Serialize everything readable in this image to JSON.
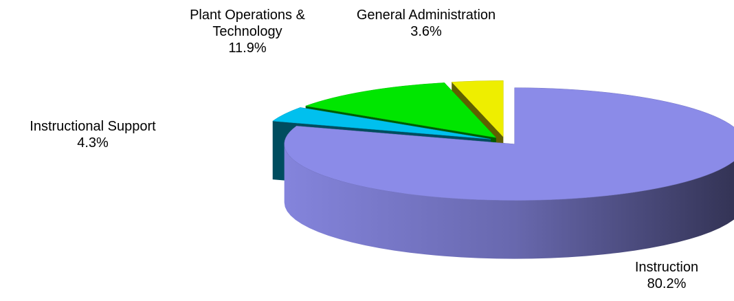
{
  "chart_data": {
    "type": "pie",
    "categories": [
      "Instruction",
      "Instructional Support",
      "Plant Operations & Technology",
      "General Administration"
    ],
    "values": [
      80.2,
      4.3,
      11.9,
      3.6
    ],
    "value_labels": [
      "80.2%",
      "4.3%",
      "11.9%",
      "3.6%"
    ],
    "colors": [
      "#8b8be8",
      "#00c0ee",
      "#00e600",
      "#eeee00"
    ]
  }
}
